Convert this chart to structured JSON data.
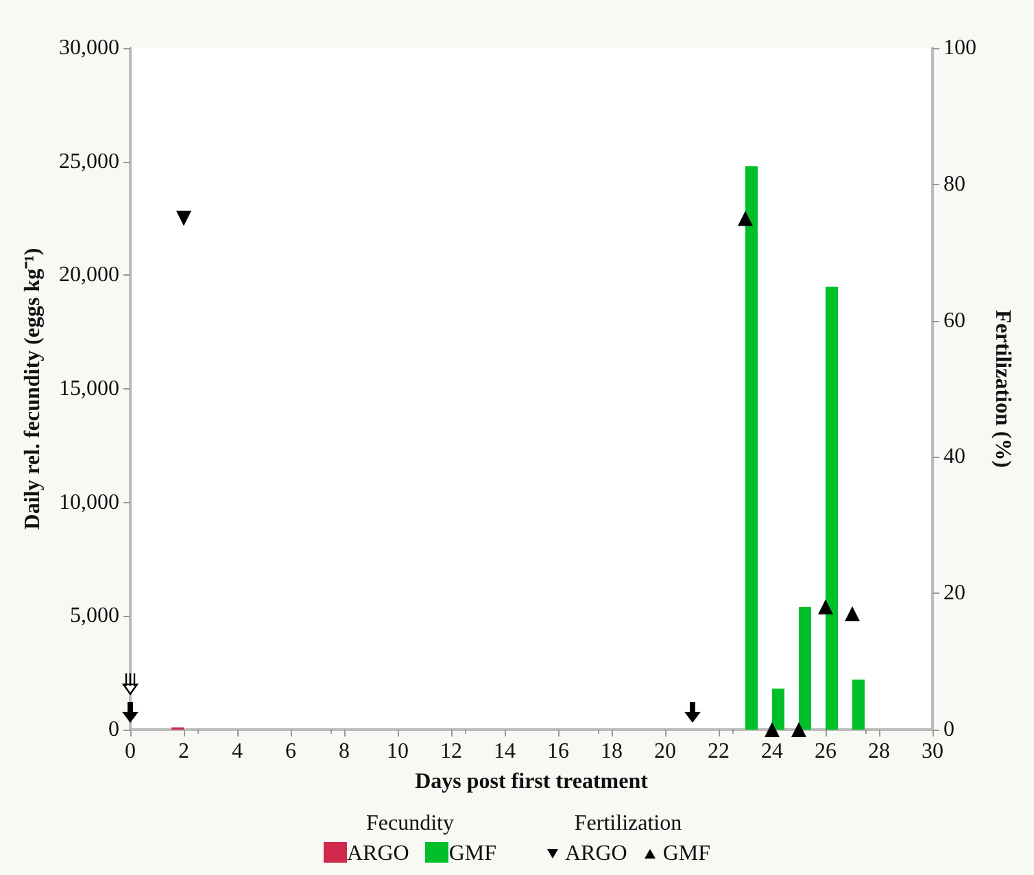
{
  "chart_data": {
    "type": "bar",
    "xlabel": "Days post first treatment",
    "ylabel": "Daily rel. fecundity (eggs kg⁻¹)",
    "y2label": "Fertilization (%)",
    "annotations": [
      "Fecundity",
      "Fertilization"
    ],
    "xlim": [
      0,
      30
    ],
    "xticks": [
      0,
      2,
      4,
      6,
      8,
      10,
      12,
      14,
      16,
      18,
      20,
      22,
      24,
      26,
      28,
      30
    ],
    "ylim": [
      0,
      30000
    ],
    "yticks": [
      {
        "value": 0,
        "label": "0"
      },
      {
        "value": 5000,
        "label": "5,000"
      },
      {
        "value": 10000,
        "label": "10,000"
      },
      {
        "value": 15000,
        "label": "15,000"
      },
      {
        "value": 20000,
        "label": "20,000"
      },
      {
        "value": 25000,
        "label": "25,000"
      },
      {
        "value": 30000,
        "label": "30,000"
      }
    ],
    "y2lim": [
      0,
      100
    ],
    "y2ticks": [
      0,
      20,
      40,
      60,
      80,
      100
    ],
    "grid": false,
    "legend": "bottom",
    "series": [
      {
        "name": "ARGO",
        "color": "#d0284a",
        "x": [
          2
        ],
        "values": [
          100
        ]
      },
      {
        "name": "GMF",
        "color": "#00c02a",
        "x": [
          23,
          24,
          25,
          26,
          27
        ],
        "values": [
          24800,
          1800,
          5400,
          19500,
          2200
        ]
      },
      {
        "name": "ARGO",
        "type": "scatter",
        "axis": "y2",
        "marker": "triangle-down",
        "color": "#000000",
        "x": [
          2
        ],
        "values": [
          75
        ]
      },
      {
        "name": "GMF",
        "type": "scatter",
        "axis": "y2",
        "marker": "triangle",
        "color": "#000000",
        "x": [
          23,
          24,
          25,
          26,
          27
        ],
        "values": [
          75,
          0,
          0,
          18,
          17
        ]
      }
    ]
  }
}
